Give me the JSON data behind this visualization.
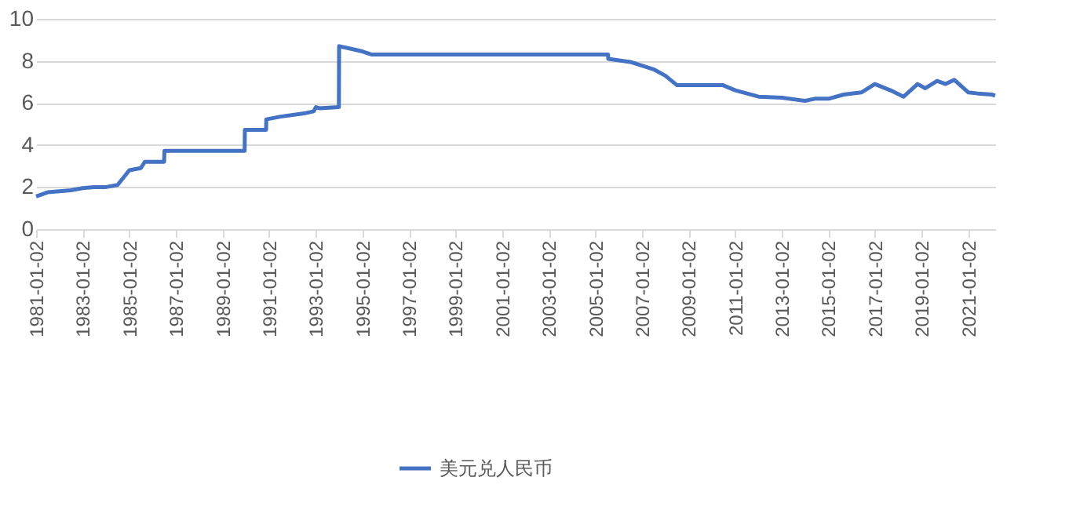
{
  "chart_data": {
    "type": "line",
    "x": [
      "1981-01-02",
      "1981-07-01",
      "1982-01-04",
      "1982-07-01",
      "1983-01-03",
      "1983-07-01",
      "1984-01-03",
      "1984-07-02",
      "1985-01-02",
      "1985-07-01",
      "1985-09-02",
      "1986-07-01",
      "1986-07-07",
      "1989-12-15",
      "1989-12-18",
      "1990-11-16",
      "1990-11-19",
      "1991-07-01",
      "1992-07-01",
      "1992-12-01",
      "1993-01-04",
      "1993-03-01",
      "1993-12-31",
      "1994-01-03",
      "1994-06-01",
      "1995-01-03",
      "1995-06-01",
      "2005-07-20",
      "2005-07-22",
      "2006-07-03",
      "2007-07-02",
      "2008-01-02",
      "2008-07-01",
      "2010-06-18",
      "2011-01-04",
      "2012-01-04",
      "2013-01-04",
      "2014-01-02",
      "2014-06-03",
      "2015-01-05",
      "2015-09-01",
      "2016-06-01",
      "2016-12-30",
      "2017-09-01",
      "2018-03-26",
      "2018-10-31",
      "2019-03-01",
      "2019-09-03",
      "2020-01-14",
      "2020-05-27",
      "2021-01-04",
      "2021-06-01",
      "2022-01-04",
      "2022-03-01"
    ],
    "series": [
      {
        "name": "美元兑人民币",
        "color": "#4472c4",
        "values": [
          1.55,
          1.75,
          1.8,
          1.85,
          1.95,
          2.0,
          2.0,
          2.1,
          2.8,
          2.9,
          3.2,
          3.2,
          3.72,
          3.72,
          4.72,
          4.72,
          5.22,
          5.35,
          5.5,
          5.6,
          5.8,
          5.75,
          5.8,
          8.7,
          8.6,
          8.45,
          8.3,
          8.3,
          8.1,
          7.95,
          7.6,
          7.3,
          6.85,
          6.85,
          6.6,
          6.3,
          6.25,
          6.1,
          6.2,
          6.2,
          6.4,
          6.5,
          6.9,
          6.6,
          6.3,
          6.9,
          6.7,
          7.05,
          6.9,
          7.1,
          6.5,
          6.45,
          6.4,
          6.35
        ]
      }
    ],
    "xlim": [
      "1981-01-02",
      "2022-03-01"
    ],
    "xticks": [
      "1981-01-02",
      "1983-01-02",
      "1985-01-02",
      "1987-01-02",
      "1989-01-02",
      "1991-01-02",
      "1993-01-02",
      "1995-01-02",
      "1997-01-02",
      "1999-01-02",
      "2001-01-02",
      "2003-01-02",
      "2005-01-02",
      "2007-01-02",
      "2009-01-02",
      "2011-01-02",
      "2013-01-02",
      "2015-01-02",
      "2017-01-02",
      "2019-01-02",
      "2021-01-02"
    ],
    "ylim": [
      0,
      10
    ],
    "yticks": [
      0,
      2,
      4,
      6,
      8,
      10
    ],
    "grid": "y",
    "legend": "bottom",
    "line_style": "solid"
  }
}
